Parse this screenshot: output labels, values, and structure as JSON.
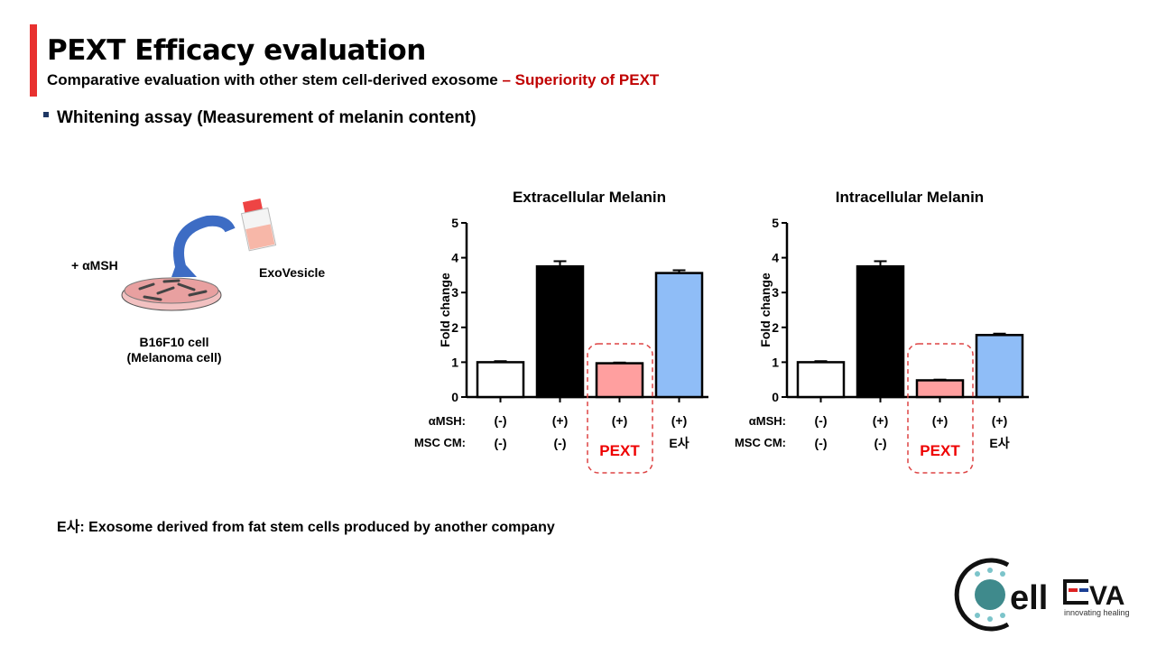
{
  "header": {
    "title": "PEXT Efficacy evaluation",
    "subtitle_main": "Comparative evaluation with other stem cell-derived exosome ",
    "subtitle_highlight": "– Superiority of PEXT"
  },
  "section": {
    "title": "Whitening assay (Measurement of melanin content)"
  },
  "illustration": {
    "treatment": "+ αMSH",
    "product": "ExoVesicle",
    "cell_line": "B16F10 cell",
    "cell_type": "(Melanoma cell)"
  },
  "row_labels": {
    "msh": "αMSH:",
    "msc": "MSC CM:"
  },
  "chart_data": [
    {
      "type": "bar",
      "title": "Extracellular Melanin",
      "ylabel": "Fold change",
      "ylim": [
        0,
        5
      ],
      "yticks": [
        0,
        1,
        2,
        3,
        4,
        5
      ],
      "categories": [
        {
          "msh": "(-)",
          "msc": "(-)"
        },
        {
          "msh": "(+)",
          "msc": "(-)"
        },
        {
          "msh": "(+)",
          "msc": "PEXT"
        },
        {
          "msh": "(+)",
          "msc": "E사"
        }
      ],
      "values": [
        1.0,
        3.75,
        0.97,
        3.56
      ],
      "errors": [
        0.03,
        0.15,
        0.02,
        0.08
      ],
      "colors": [
        "#ffffff",
        "#000000",
        "#ff9f9f",
        "#8fbdf7"
      ],
      "highlight_index": 2
    },
    {
      "type": "bar",
      "title": "Intracellular Melanin",
      "ylabel": "Fold change",
      "ylim": [
        0,
        5
      ],
      "yticks": [
        0,
        1,
        2,
        3,
        4,
        5
      ],
      "categories": [
        {
          "msh": "(-)",
          "msc": "(-)"
        },
        {
          "msh": "(+)",
          "msc": "(-)"
        },
        {
          "msh": "(+)",
          "msc": "PEXT"
        },
        {
          "msh": "(+)",
          "msc": "E사"
        }
      ],
      "values": [
        1.0,
        3.75,
        0.48,
        1.78
      ],
      "errors": [
        0.03,
        0.15,
        0.02,
        0.04
      ],
      "colors": [
        "#ffffff",
        "#000000",
        "#ff9f9f",
        "#8fbdf7"
      ],
      "highlight_index": 2
    }
  ],
  "footnote": "E사: Exosome derived from fat stem cells produced by another company",
  "logo": {
    "name": "CellEVA",
    "tagline": "innovating healing"
  }
}
